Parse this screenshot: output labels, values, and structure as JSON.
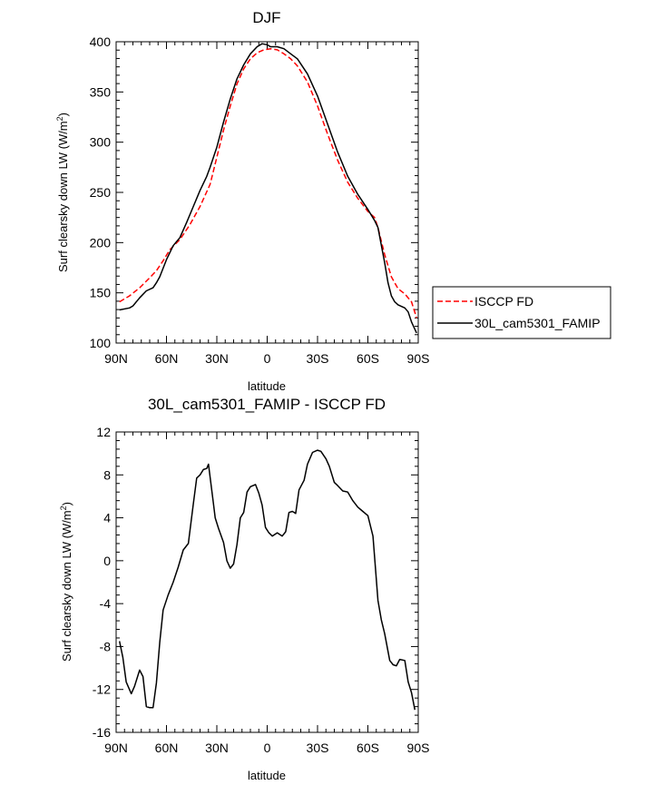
{
  "chart_data": [
    {
      "type": "line",
      "title": "DJF",
      "xlabel": "latitude",
      "ylabel_main": "Surf clearsky down LW (W/m",
      "ylabel_sup": "2",
      "ylabel_close": ")",
      "xlim": [
        -90,
        90
      ],
      "ylim": [
        100,
        400
      ],
      "xticks": [
        -90,
        -60,
        -30,
        0,
        30,
        60,
        90
      ],
      "xtick_labels": [
        "90N",
        "60N",
        "30N",
        "0",
        "30S",
        "60S",
        "90S"
      ],
      "yticks": [
        100,
        150,
        200,
        250,
        300,
        350,
        400
      ],
      "ytick_labels": [
        "100",
        "150",
        "200",
        "250",
        "300",
        "350",
        "400"
      ],
      "legend": [
        "ISCCP FD",
        "30L_cam5301_FAMIP"
      ],
      "series": [
        {
          "name": "ISCCP FD",
          "color": "#ff0000",
          "dash": true,
          "x": [
            -88,
            -82,
            -76,
            -70,
            -66,
            -62,
            -58,
            -52,
            -46,
            -40,
            -34,
            -30,
            -26,
            -22,
            -18,
            -14,
            -10,
            -6,
            -2,
            2,
            6,
            10,
            14,
            18,
            24,
            30,
            36,
            42,
            48,
            54,
            60,
            64,
            66,
            70,
            74,
            78,
            82,
            86,
            89
          ],
          "values": [
            141,
            147,
            155,
            165,
            172,
            182,
            193,
            203,
            218,
            236,
            258,
            285,
            312,
            336,
            358,
            373,
            383,
            389,
            392,
            393,
            392,
            388,
            383,
            376,
            360,
            336,
            308,
            282,
            260,
            244,
            231,
            225,
            215,
            188,
            166,
            154,
            149,
            141,
            125
          ]
        },
        {
          "name": "30L_cam5301_FAMIP",
          "color": "#000000",
          "dash": false,
          "x": [
            -88,
            -82,
            -80,
            -76,
            -72,
            -68,
            -66,
            -64,
            -60,
            -56,
            -52,
            -48,
            -44,
            -40,
            -36,
            -34,
            -30,
            -26,
            -22,
            -18,
            -14,
            -10,
            -6,
            -3,
            0,
            2,
            6,
            10,
            14,
            18,
            24,
            30,
            36,
            42,
            48,
            54,
            60,
            64,
            66,
            70,
            72,
            74,
            76,
            78,
            82,
            84,
            86,
            89
          ],
          "values": [
            133,
            135,
            137,
            145,
            152,
            155,
            160,
            166,
            183,
            197,
            205,
            220,
            236,
            252,
            266,
            275,
            295,
            320,
            343,
            363,
            377,
            388,
            395,
            398,
            397,
            395,
            395,
            393,
            388,
            383,
            368,
            346,
            318,
            290,
            266,
            248,
            233,
            222,
            215,
            180,
            160,
            147,
            141,
            138,
            135,
            131,
            121,
            110
          ]
        }
      ]
    },
    {
      "type": "line",
      "title": "30L_cam5301_FAMIP - ISCCP FD",
      "xlabel": "latitude",
      "ylabel_main": "Surf clearsky down LW (W/m",
      "ylabel_sup": "2",
      "ylabel_close": ")",
      "xlim": [
        -90,
        90
      ],
      "ylim": [
        -16,
        12
      ],
      "xticks": [
        -90,
        -60,
        -30,
        0,
        30,
        60,
        90
      ],
      "xtick_labels": [
        "90N",
        "60N",
        "30N",
        "0",
        "30S",
        "60S",
        "90S"
      ],
      "yticks": [
        -16,
        -12,
        -8,
        -4,
        0,
        4,
        8,
        12
      ],
      "ytick_labels": [
        "-16",
        "-12",
        "-8",
        "-4",
        "0",
        "4",
        "8",
        "12"
      ],
      "series": [
        {
          "name": "30L_cam5301_FAMIP - ISCCP FD",
          "color": "#000000",
          "dash": false,
          "x": [
            -88,
            -86,
            -84,
            -81,
            -79,
            -76,
            -74,
            -72,
            -70,
            -68,
            -66,
            -64,
            -62,
            -59,
            -56,
            -53,
            -50,
            -47,
            -44,
            -42,
            -40,
            -38,
            -36,
            -35,
            -32,
            -31,
            -29,
            -26,
            -24,
            -22,
            -20,
            -18,
            -16,
            -14,
            -12,
            -10,
            -7,
            -5,
            -3,
            -1,
            1,
            3,
            6,
            9,
            11,
            13,
            15,
            17,
            19,
            22,
            24,
            27,
            30,
            32,
            35,
            37,
            40,
            42,
            45,
            48,
            51,
            54,
            57,
            60,
            63,
            66,
            68,
            70,
            73,
            75,
            77,
            79,
            82,
            84,
            86,
            88
          ],
          "values": [
            -7.5,
            -9.0,
            -11.3,
            -12.4,
            -11.7,
            -10.2,
            -10.8,
            -13.6,
            -13.7,
            -13.7,
            -11.4,
            -7.6,
            -4.6,
            -3.2,
            -2.0,
            -0.6,
            1.0,
            1.6,
            5.3,
            7.7,
            8.0,
            8.5,
            8.6,
            9.0,
            5.3,
            4.0,
            3.0,
            1.7,
            0.0,
            -0.7,
            -0.3,
            1.5,
            4.0,
            4.5,
            6.4,
            6.9,
            7.1,
            6.3,
            5.2,
            3.1,
            2.6,
            2.3,
            2.6,
            2.3,
            2.7,
            4.5,
            4.6,
            4.4,
            6.6,
            7.5,
            9.0,
            10.1,
            10.3,
            10.2,
            9.5,
            8.8,
            7.3,
            7.0,
            6.5,
            6.4,
            5.6,
            5.0,
            4.6,
            4.2,
            2.3,
            -3.7,
            -5.5,
            -6.8,
            -9.3,
            -9.7,
            -9.8,
            -9.2,
            -9.3,
            -11.3,
            -12.3,
            -13.9
          ]
        }
      ]
    }
  ]
}
